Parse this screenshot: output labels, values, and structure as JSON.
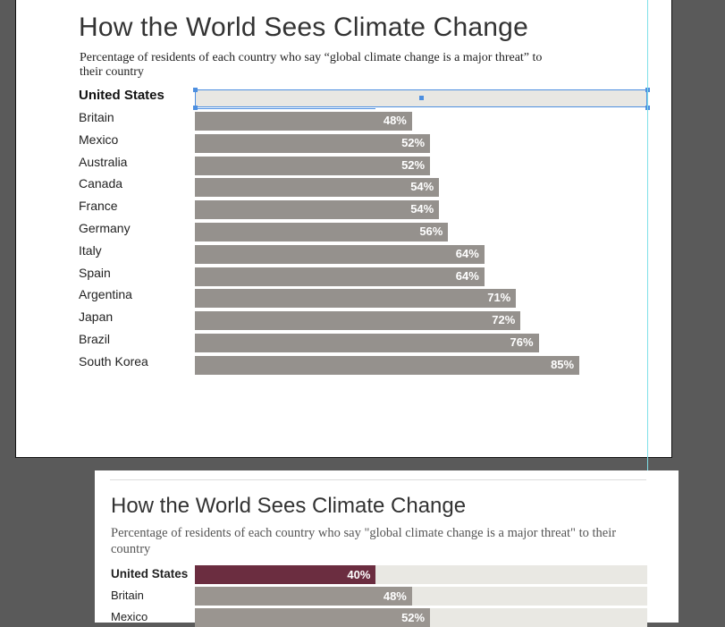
{
  "artboard": {
    "title": "How the World Sees Climate Change",
    "subtitle": "Percentage of residents of each country who say “global climate change is a major threat” to their country",
    "highlight_label": "United States"
  },
  "chart_data": {
    "type": "bar",
    "title": "How the World Sees Climate Change",
    "subtitle": "Percentage of residents of each country who say “global climate change is a major threat” to their country",
    "categories": [
      "Britain",
      "Mexico",
      "Australia",
      "Canada",
      "France",
      "Germany",
      "Italy",
      "Spain",
      "Argentina",
      "Japan",
      "Brazil",
      "South Korea"
    ],
    "values": [
      48,
      52,
      52,
      54,
      54,
      56,
      64,
      64,
      71,
      72,
      76,
      85
    ],
    "value_labels": [
      "48%",
      "52%",
      "52%",
      "54%",
      "54%",
      "56%",
      "64%",
      "64%",
      "71%",
      "72%",
      "76%",
      "85%"
    ],
    "colors": {
      "bar": "#95918d",
      "label": "#ffffff"
    }
  },
  "preview": {
    "title": "How the World Sees Climate Change",
    "subtitle": "Percentage of residents of each country who say \"global climate change is a major threat\" to their country",
    "rows": [
      {
        "label": "United States",
        "value": 40,
        "value_label": "40%",
        "highlight": true
      },
      {
        "label": "Britain",
        "value": 48,
        "value_label": "48%",
        "highlight": false
      },
      {
        "label": "Mexico",
        "value": 52,
        "value_label": "52%",
        "highlight": false
      }
    ],
    "colors": {
      "highlight": "#6b2d40",
      "bar": "#9a9590",
      "track": "#e9e8e3"
    }
  }
}
